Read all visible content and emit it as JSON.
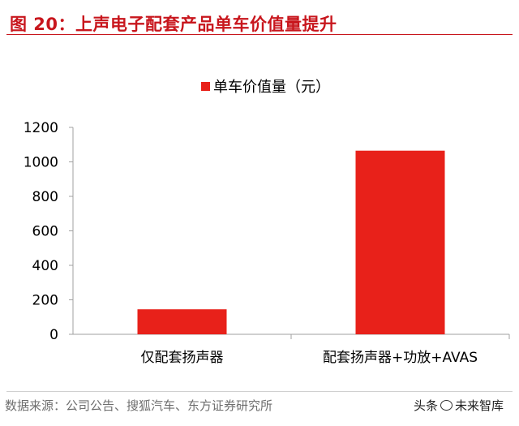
{
  "header": {
    "title": "图 20：上声电子配套产品单车价值量提升"
  },
  "footer": {
    "source": "数据来源：公司公告、搜狐汽车、东方证券研究所",
    "watermark_prefix": "头条",
    "watermark_name": "未来智库"
  },
  "chart_data": {
    "type": "bar",
    "categories": [
      "仅配套扬声器",
      "配套扬声器+功放+AVAS"
    ],
    "series": [
      {
        "name": "单车价值量（元）",
        "values": [
          145,
          1065
        ],
        "color": "#e8211a"
      }
    ],
    "yticks": [
      "0",
      "200",
      "400",
      "600",
      "800",
      "1000",
      "1200"
    ],
    "ylim": [
      0,
      1200
    ],
    "legend_position": "top-center",
    "grid": false
  }
}
